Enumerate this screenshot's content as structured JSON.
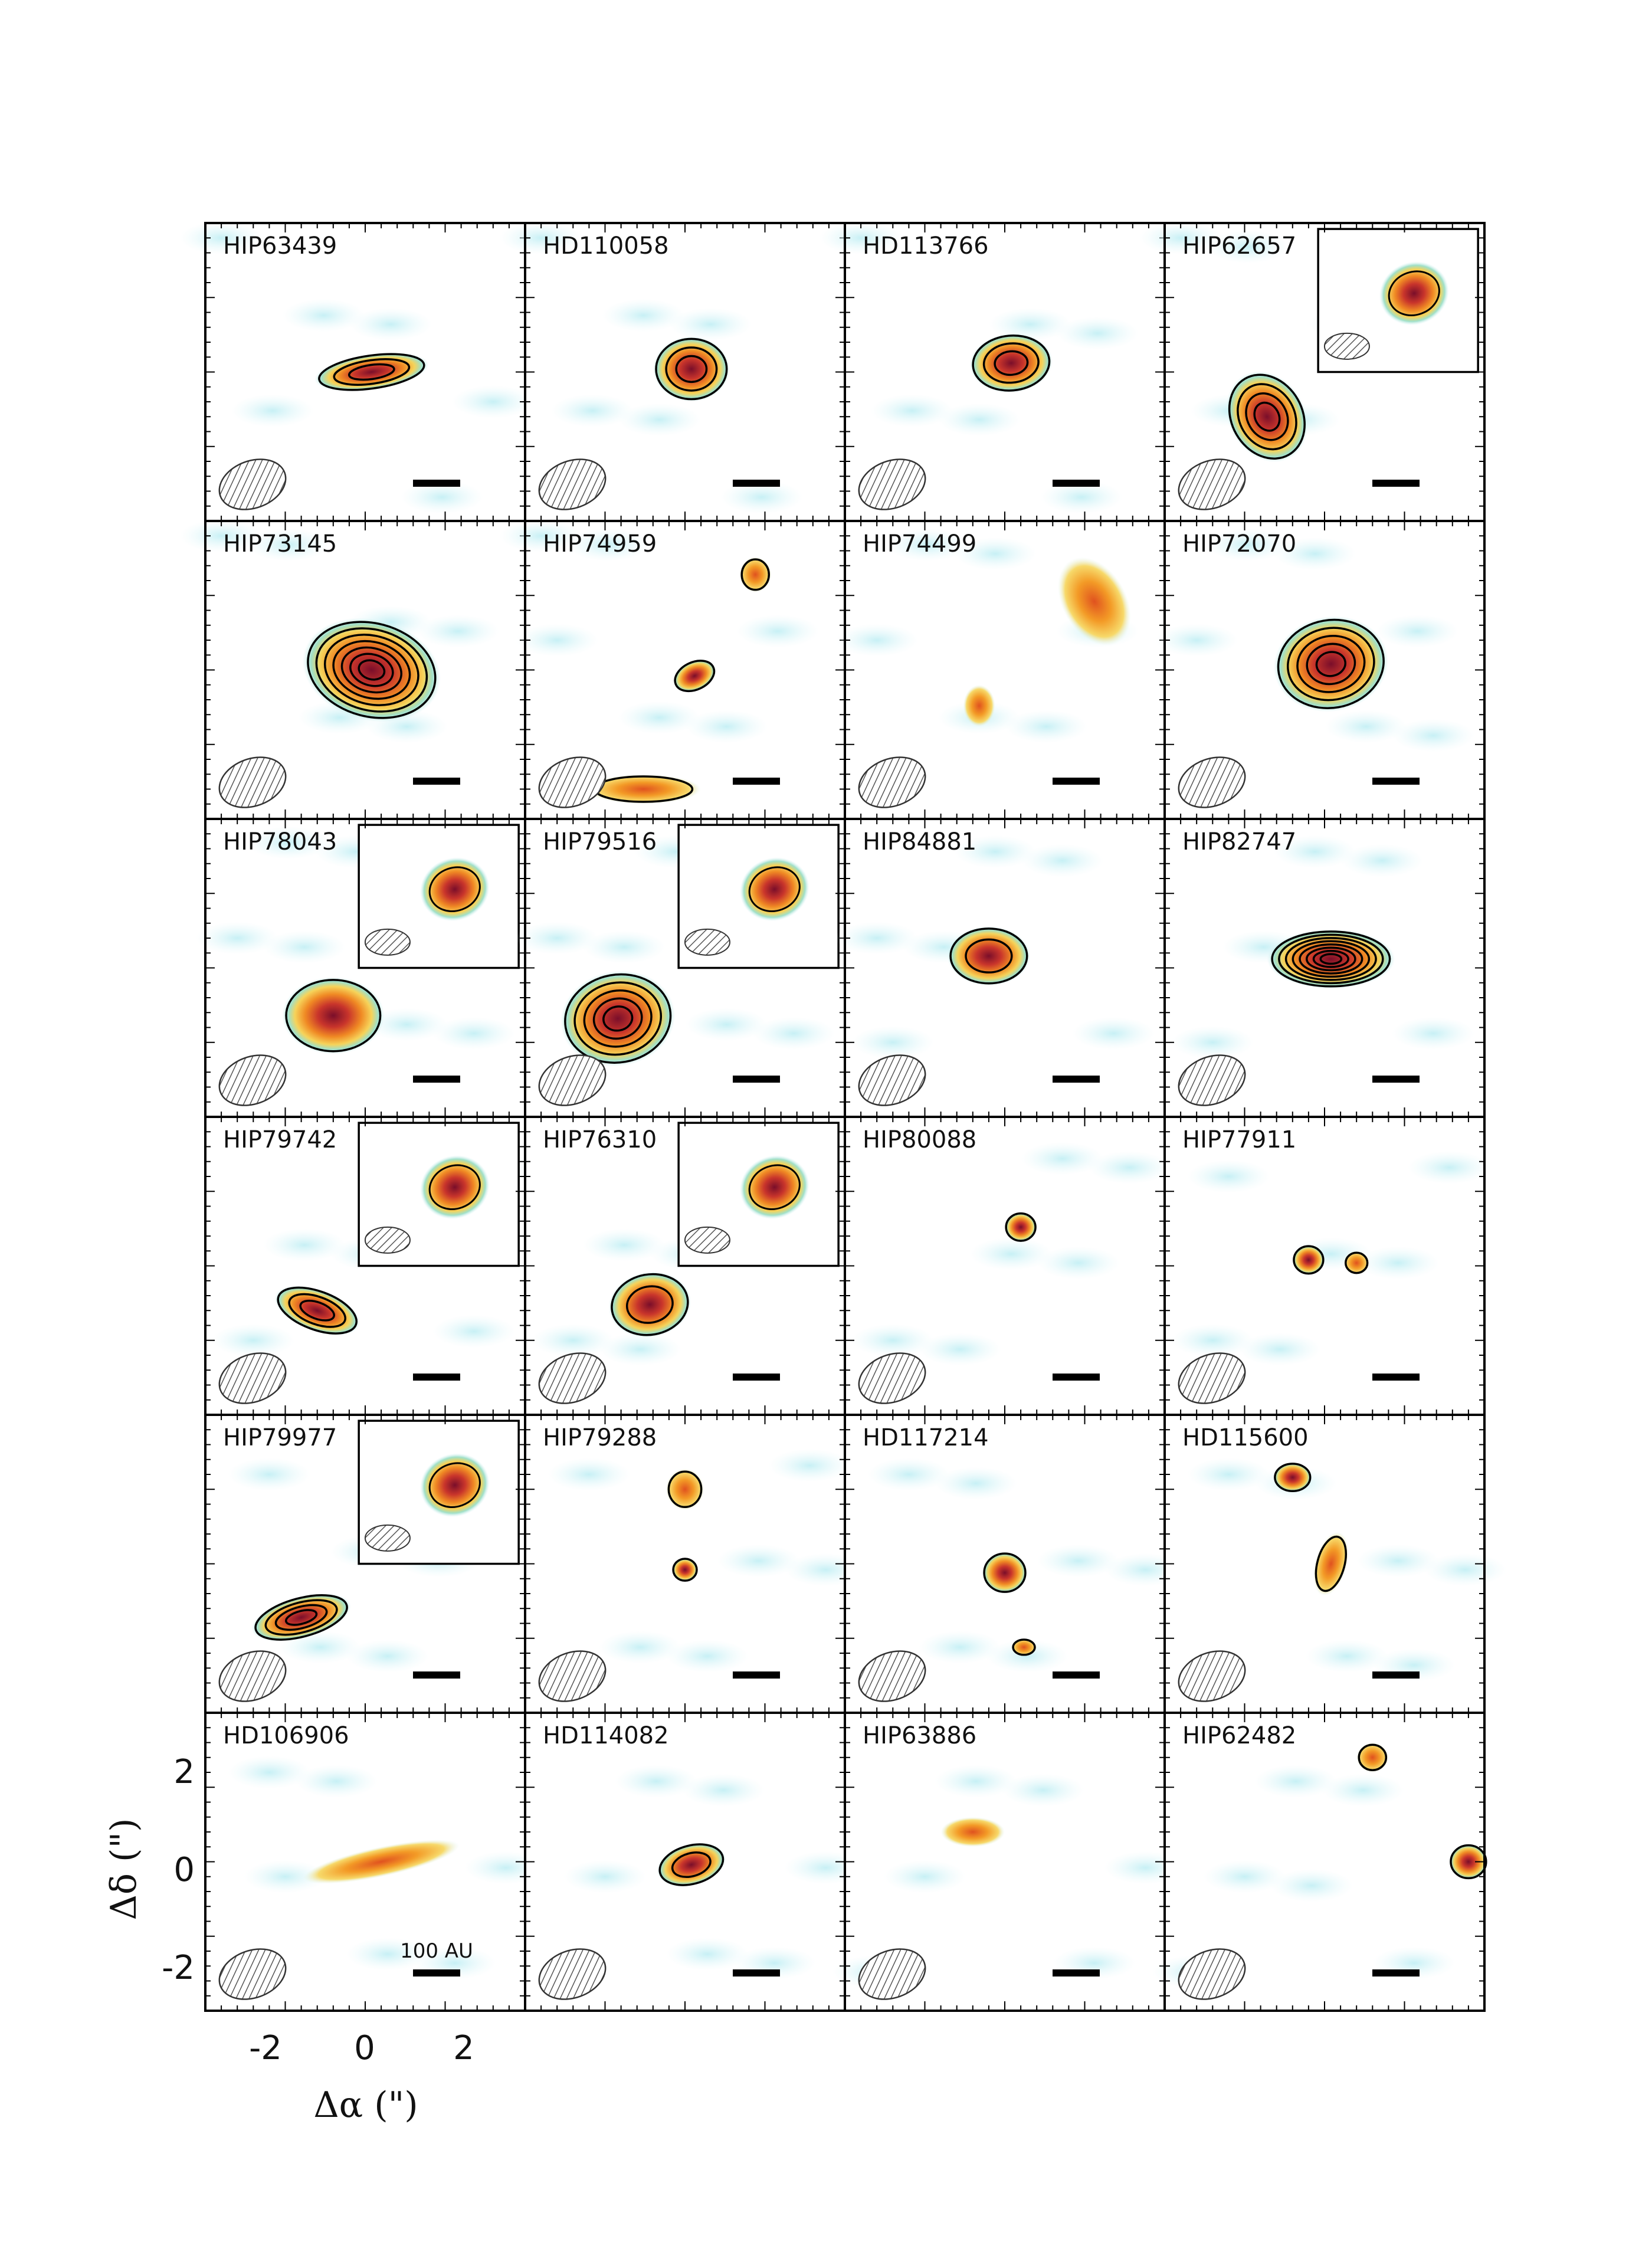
{
  "figure": {
    "panels": [
      {
        "label": "HIP63439",
        "inset": false,
        "contours": 3
      },
      {
        "label": "HD110058",
        "inset": false,
        "contours": 3
      },
      {
        "label": "HD113766",
        "inset": false,
        "contours": 3
      },
      {
        "label": "HIP62657",
        "inset": true,
        "contours": 4
      },
      {
        "label": "HIP73145",
        "inset": false,
        "contours": 7
      },
      {
        "label": "HIP74959",
        "inset": false,
        "contours": 1
      },
      {
        "label": "HIP74499",
        "inset": false,
        "contours": 0
      },
      {
        "label": "HIP72070",
        "inset": false,
        "contours": 5
      },
      {
        "label": "HIP78043",
        "inset": true,
        "contours": 1
      },
      {
        "label": "HIP79516",
        "inset": true,
        "contours": 5
      },
      {
        "label": "HIP84881",
        "inset": false,
        "contours": 2
      },
      {
        "label": "HIP82747",
        "inset": false,
        "contours": 8
      },
      {
        "label": "HIP79742",
        "inset": true,
        "contours": 3
      },
      {
        "label": "HIP76310",
        "inset": true,
        "contours": 2
      },
      {
        "label": "HIP80088",
        "inset": false,
        "contours": 1
      },
      {
        "label": "HIP77911",
        "inset": false,
        "contours": 1
      },
      {
        "label": "HIP79977",
        "inset": true,
        "contours": 4
      },
      {
        "label": "HIP79288",
        "inset": false,
        "contours": 1
      },
      {
        "label": "HD117214",
        "inset": false,
        "contours": 1
      },
      {
        "label": "HD115600",
        "inset": false,
        "contours": 1
      },
      {
        "label": "HD106906",
        "inset": false,
        "contours": 0
      },
      {
        "label": "HD114082",
        "inset": false,
        "contours": 2
      },
      {
        "label": "HIP63886",
        "inset": false,
        "contours": 0
      },
      {
        "label": "HIP62482",
        "inset": false,
        "contours": 1
      }
    ],
    "x_axis": {
      "title": "Δα (\")",
      "ticks": [
        "-2",
        "0",
        "2"
      ]
    },
    "y_axis": {
      "title": "Δδ (\")",
      "ticks": [
        "2",
        "0",
        "-2"
      ]
    },
    "scale_bar_label": "100 AU",
    "colors": {
      "frame": "#000000",
      "contour": "#000000",
      "low_emission": "#c8eef5",
      "mid_emission": "#f5a623",
      "high_emission": "#9b1c2e"
    }
  }
}
